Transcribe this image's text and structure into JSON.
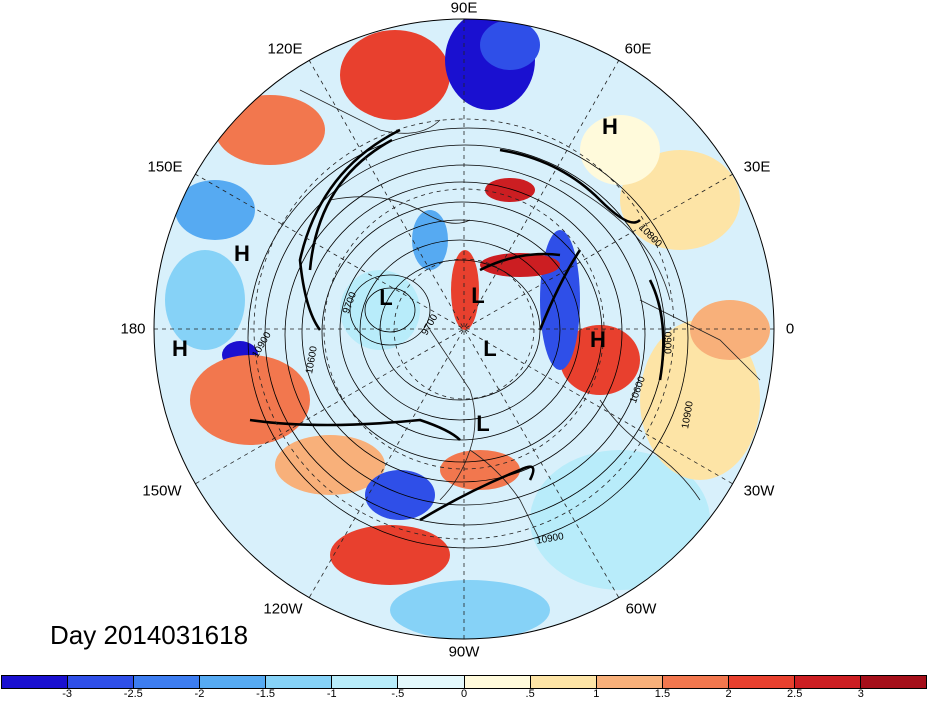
{
  "title": "Day 2014031618",
  "longitude_labels": {
    "e90": "90E",
    "e120": "120E",
    "e60": "60E",
    "e150": "150E",
    "e30": "30E",
    "w180": "180",
    "e0": "0",
    "w150": "150W",
    "w30": "30W",
    "w120": "120W",
    "w60": "60W",
    "w90": "90W"
  },
  "pressure_systems": {
    "h1": "H",
    "h2": "H",
    "h3": "H",
    "h4": "H",
    "l1": "L",
    "l2": "L",
    "l3": "L",
    "l4": "L"
  },
  "contour_labels": {
    "c9700a": "9700",
    "c9700b": "9700",
    "c10900a": "10900",
    "c10600a": "10600",
    "c10800": "10800",
    "c10900b": "10900",
    "c10600b": "10600",
    "c10900c": "10900",
    "c10900d": "10900"
  },
  "colorbar": {
    "colors": [
      "#1a10d0",
      "#2f4fe8",
      "#3d7df0",
      "#56aaf2",
      "#86d2f7",
      "#b8ecfa",
      "#e3f8fc",
      "#fffadb",
      "#fde4a6",
      "#f8b07a",
      "#f2774e",
      "#e8402e",
      "#cc1e22",
      "#a50f1a"
    ],
    "tick_labels": [
      "-3",
      "-2.5",
      "-2",
      "-1.5",
      "-1",
      "-.5",
      "0",
      ".5",
      "1",
      "1.5",
      "2",
      "2.5",
      "3"
    ]
  }
}
